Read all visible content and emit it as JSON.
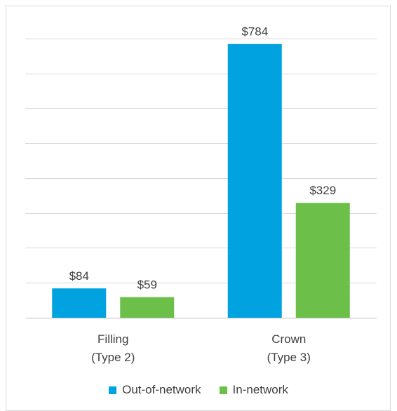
{
  "chart_data": {
    "type": "bar",
    "categories": [
      [
        "Filling",
        "(Type 2)"
      ],
      [
        "Crown",
        "(Type 3)"
      ]
    ],
    "series": [
      {
        "name": "Out-of-network",
        "color": "#00a2e0",
        "values": [
          84,
          784
        ],
        "labels": [
          "$84",
          "$784"
        ]
      },
      {
        "name": "In-network",
        "color": "#6cc04a",
        "values": [
          59,
          329
        ],
        "labels": [
          "$59",
          "$329"
        ]
      }
    ],
    "ylim": [
      0,
      900
    ],
    "grid": true,
    "legend": "bottom"
  }
}
